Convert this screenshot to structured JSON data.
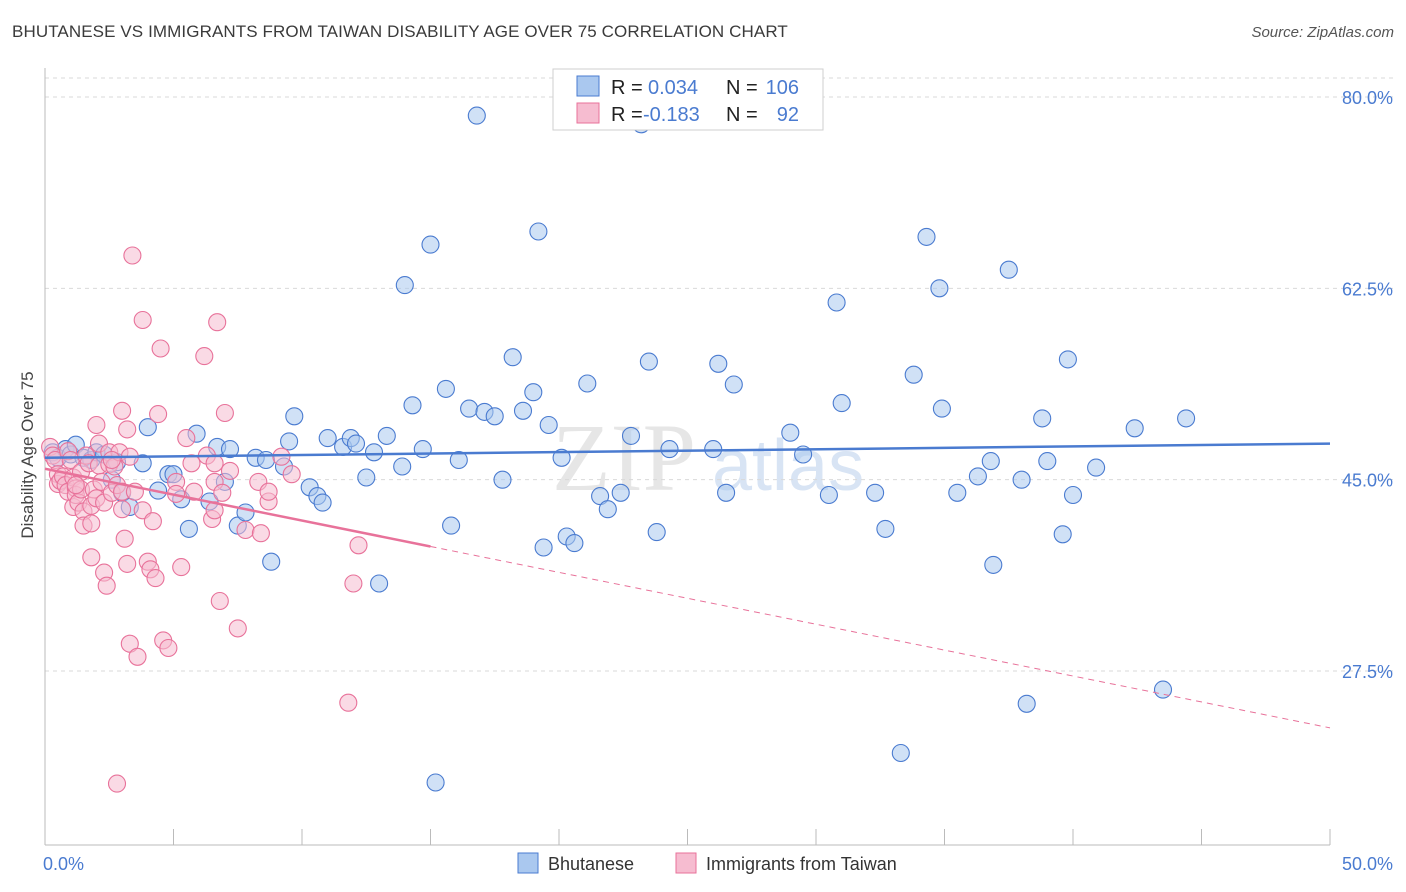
{
  "header": {
    "title": "BHUTANESE VS IMMIGRANTS FROM TAIWAN DISABILITY AGE OVER 75 CORRELATION CHART",
    "source": "Source: ZipAtlas.com"
  },
  "colors": {
    "blue": "#4a7bd0",
    "blue_fill": "#aac8ef",
    "pink": "#e8729a",
    "pink_fill": "#f6bcd0",
    "grid": "#d9d9d9"
  },
  "stats": {
    "r_label": "R = ",
    "n_label": "N = ",
    "blue_r": "0.034",
    "blue_n": "106",
    "pink_r": "-0.183",
    "pink_n": "92"
  },
  "watermark": {
    "zip": "ZIP",
    "atlas": "atlas"
  },
  "chart_data": {
    "type": "scatter",
    "title": "BHUTANESE VS IMMIGRANTS FROM TAIWAN DISABILITY AGE OVER 75 CORRELATION CHART",
    "xlabel": "",
    "ylabel": "Disability Age Over 75",
    "xlim": [
      0,
      50
    ],
    "ylim": [
      10,
      85
    ],
    "x_tick_labels": [
      "0.0%",
      "50.0%"
    ],
    "y_ticks": [
      27.5,
      45.0,
      62.5,
      80.0
    ],
    "y_tick_labels": [
      "27.5%",
      "45.0%",
      "62.5%",
      "80.0%"
    ],
    "grid": true,
    "legend_position": "top-center",
    "series": [
      {
        "name": "Bhutanese",
        "color": "#4a7bd0",
        "r": 0.034,
        "n": 106,
        "trend": {
          "x": [
            0,
            50
          ],
          "y": [
            47.0,
            48.3
          ],
          "dashed_from": null
        },
        "points": [
          [
            0.3,
            47.5
          ],
          [
            0.5,
            47.0
          ],
          [
            0.8,
            47.8
          ],
          [
            1.0,
            47.3
          ],
          [
            1.2,
            48.2
          ],
          [
            1.5,
            47.0
          ],
          [
            1.8,
            46.8
          ],
          [
            2.0,
            47.5
          ],
          [
            2.3,
            47.3
          ],
          [
            2.6,
            45.0
          ],
          [
            2.8,
            46.6
          ],
          [
            3.0,
            43.8
          ],
          [
            3.3,
            42.5
          ],
          [
            3.8,
            46.5
          ],
          [
            4.0,
            49.8
          ],
          [
            4.4,
            44.0
          ],
          [
            4.8,
            45.5
          ],
          [
            5.0,
            45.5
          ],
          [
            5.3,
            43.2
          ],
          [
            5.6,
            40.5
          ],
          [
            5.9,
            49.2
          ],
          [
            6.4,
            43.0
          ],
          [
            6.7,
            48.0
          ],
          [
            7.0,
            44.8
          ],
          [
            7.2,
            47.8
          ],
          [
            7.5,
            40.8
          ],
          [
            7.8,
            42.0
          ],
          [
            8.2,
            47.0
          ],
          [
            8.6,
            46.8
          ],
          [
            8.8,
            37.5
          ],
          [
            9.3,
            46.2
          ],
          [
            9.5,
            48.5
          ],
          [
            9.7,
            50.8
          ],
          [
            10.3,
            44.3
          ],
          [
            10.6,
            43.5
          ],
          [
            10.8,
            42.9
          ],
          [
            11.0,
            48.8
          ],
          [
            11.6,
            48.0
          ],
          [
            11.9,
            48.8
          ],
          [
            12.1,
            48.3
          ],
          [
            12.5,
            45.2
          ],
          [
            12.8,
            47.5
          ],
          [
            13.0,
            35.5
          ],
          [
            13.3,
            49.0
          ],
          [
            13.9,
            46.2
          ],
          [
            14.0,
            62.8
          ],
          [
            14.3,
            51.8
          ],
          [
            14.7,
            47.8
          ],
          [
            15.0,
            66.5
          ],
          [
            15.2,
            17.3
          ],
          [
            15.6,
            53.3
          ],
          [
            15.8,
            40.8
          ],
          [
            16.1,
            46.8
          ],
          [
            16.5,
            51.5
          ],
          [
            16.8,
            78.3
          ],
          [
            17.1,
            51.2
          ],
          [
            17.5,
            50.8
          ],
          [
            17.8,
            45.0
          ],
          [
            18.2,
            56.2
          ],
          [
            18.6,
            51.3
          ],
          [
            19.0,
            53.0
          ],
          [
            19.2,
            67.7
          ],
          [
            19.4,
            38.8
          ],
          [
            19.6,
            50.0
          ],
          [
            20.1,
            47.0
          ],
          [
            20.3,
            39.8
          ],
          [
            20.6,
            39.2
          ],
          [
            21.1,
            53.8
          ],
          [
            21.6,
            43.5
          ],
          [
            21.9,
            42.3
          ],
          [
            22.4,
            43.8
          ],
          [
            22.8,
            49.0
          ],
          [
            23.5,
            55.8
          ],
          [
            23.2,
            77.5
          ],
          [
            23.8,
            40.2
          ],
          [
            24.3,
            47.8
          ],
          [
            26.0,
            47.8
          ],
          [
            26.2,
            55.6
          ],
          [
            26.5,
            43.8
          ],
          [
            26.8,
            53.7
          ],
          [
            29.0,
            49.3
          ],
          [
            29.5,
            47.3
          ],
          [
            30.5,
            43.6
          ],
          [
            30.8,
            61.2
          ],
          [
            31.0,
            52.0
          ],
          [
            32.3,
            43.8
          ],
          [
            32.7,
            40.5
          ],
          [
            33.3,
            20.0
          ],
          [
            33.8,
            54.6
          ],
          [
            34.3,
            67.2
          ],
          [
            34.8,
            62.5
          ],
          [
            34.9,
            51.5
          ],
          [
            35.5,
            43.8
          ],
          [
            36.3,
            45.3
          ],
          [
            36.8,
            46.7
          ],
          [
            36.9,
            37.2
          ],
          [
            37.5,
            64.2
          ],
          [
            38.0,
            45.0
          ],
          [
            38.2,
            24.5
          ],
          [
            38.8,
            50.6
          ],
          [
            39.0,
            46.7
          ],
          [
            39.6,
            40.0
          ],
          [
            39.8,
            56.0
          ],
          [
            40.0,
            43.6
          ],
          [
            40.9,
            46.1
          ],
          [
            42.4,
            49.7
          ],
          [
            43.5,
            25.8
          ],
          [
            44.4,
            50.6
          ]
        ]
      },
      {
        "name": "Immigrants from Taiwan",
        "color": "#e8729a",
        "r": -0.183,
        "n": 92,
        "trend": {
          "x": [
            0,
            50
          ],
          "y": [
            46.0,
            22.3
          ],
          "dashed_from": 15.0
        },
        "points": [
          [
            0.2,
            48.0
          ],
          [
            0.3,
            47.2
          ],
          [
            0.4,
            46.8
          ],
          [
            0.5,
            45.5
          ],
          [
            0.5,
            44.6
          ],
          [
            0.6,
            44.9
          ],
          [
            0.7,
            45.3
          ],
          [
            0.8,
            44.5
          ],
          [
            0.9,
            43.9
          ],
          [
            0.9,
            47.6
          ],
          [
            1.0,
            46.8
          ],
          [
            1.1,
            45.2
          ],
          [
            1.1,
            42.5
          ],
          [
            1.2,
            44.2
          ],
          [
            1.2,
            43.6
          ],
          [
            1.3,
            42.9
          ],
          [
            1.4,
            45.7
          ],
          [
            1.4,
            44.1
          ],
          [
            1.5,
            42.1
          ],
          [
            1.5,
            40.8
          ],
          [
            1.6,
            47.2
          ],
          [
            1.7,
            46.5
          ],
          [
            1.8,
            42.6
          ],
          [
            1.8,
            41.0
          ],
          [
            1.8,
            37.9
          ],
          [
            1.9,
            44.1
          ],
          [
            2.0,
            43.3
          ],
          [
            2.0,
            50.0
          ],
          [
            2.1,
            48.3
          ],
          [
            2.1,
            46.3
          ],
          [
            2.2,
            44.8
          ],
          [
            2.3,
            42.9
          ],
          [
            2.3,
            36.5
          ],
          [
            2.4,
            35.3
          ],
          [
            2.5,
            47.5
          ],
          [
            2.5,
            46.4
          ],
          [
            2.6,
            43.8
          ],
          [
            2.7,
            46.2
          ],
          [
            2.8,
            44.5
          ],
          [
            2.9,
            47.5
          ],
          [
            3.0,
            51.3
          ],
          [
            3.0,
            43.9
          ],
          [
            3.0,
            42.3
          ],
          [
            3.1,
            39.6
          ],
          [
            3.2,
            49.6
          ],
          [
            3.2,
            37.3
          ],
          [
            3.3,
            47.1
          ],
          [
            3.3,
            30.0
          ],
          [
            3.4,
            65.5
          ],
          [
            3.5,
            43.9
          ],
          [
            3.6,
            28.8
          ],
          [
            3.8,
            42.2
          ],
          [
            3.8,
            59.6
          ],
          [
            4.0,
            37.5
          ],
          [
            4.1,
            36.8
          ],
          [
            4.2,
            41.2
          ],
          [
            4.3,
            36.0
          ],
          [
            4.4,
            51.0
          ],
          [
            4.5,
            57.0
          ],
          [
            4.6,
            30.3
          ],
          [
            4.8,
            29.6
          ],
          [
            5.1,
            44.8
          ],
          [
            5.1,
            43.7
          ],
          [
            5.3,
            37.0
          ],
          [
            5.5,
            48.8
          ],
          [
            5.7,
            46.5
          ],
          [
            5.8,
            43.9
          ],
          [
            6.2,
            56.3
          ],
          [
            6.3,
            47.2
          ],
          [
            6.5,
            41.4
          ],
          [
            6.6,
            42.2
          ],
          [
            6.6,
            46.5
          ],
          [
            6.6,
            44.8
          ],
          [
            6.7,
            59.4
          ],
          [
            6.8,
            33.9
          ],
          [
            6.9,
            43.8
          ],
          [
            7.0,
            51.1
          ],
          [
            7.2,
            45.8
          ],
          [
            7.5,
            31.4
          ],
          [
            7.8,
            40.4
          ],
          [
            8.3,
            44.8
          ],
          [
            8.4,
            40.1
          ],
          [
            8.7,
            43.0
          ],
          [
            8.7,
            43.9
          ],
          [
            9.2,
            47.1
          ],
          [
            9.6,
            45.5
          ],
          [
            11.8,
            24.6
          ],
          [
            12.0,
            35.5
          ],
          [
            12.2,
            39.0
          ],
          [
            2.8,
            17.2
          ],
          [
            2.6,
            46.8
          ],
          [
            1.2,
            44.5
          ]
        ]
      }
    ]
  },
  "legend": {
    "items": [
      {
        "label": "Bhutanese"
      },
      {
        "label": "Immigrants from Taiwan"
      }
    ]
  }
}
